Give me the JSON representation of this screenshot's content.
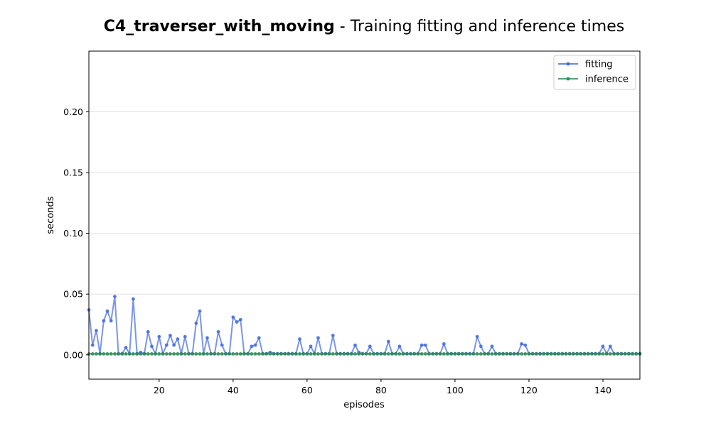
{
  "chart_data": {
    "type": "line",
    "title_bold": "C4_traverser_with_moving",
    "title_rest": " - Training fitting and inference times",
    "xlabel": "episodes",
    "ylabel": "seconds",
    "xlim": [
      1,
      150
    ],
    "ylim": [
      -0.02,
      0.25
    ],
    "xticks": [
      20,
      40,
      60,
      80,
      100,
      120,
      140
    ],
    "yticks": [
      0.0,
      0.05,
      0.1,
      0.15,
      0.2
    ],
    "ytick_labels": [
      "0.00",
      "0.05",
      "0.10",
      "0.15",
      "0.20"
    ],
    "grid": "horizontal",
    "legend_position": "top-right",
    "series": [
      {
        "name": "fitting",
        "color": "#4169e1",
        "x": [
          1,
          2,
          3,
          4,
          5,
          6,
          7,
          8,
          9,
          10,
          11,
          12,
          13,
          14,
          15,
          16,
          17,
          18,
          19,
          20,
          21,
          22,
          23,
          24,
          25,
          26,
          27,
          28,
          29,
          30,
          31,
          32,
          33,
          34,
          35,
          36,
          37,
          38,
          39,
          40,
          41,
          42,
          43,
          44,
          45,
          46,
          47,
          48,
          49,
          50,
          51,
          52,
          53,
          54,
          55,
          56,
          57,
          58,
          59,
          60,
          61,
          62,
          63,
          64,
          65,
          66,
          67,
          68,
          69,
          70,
          71,
          72,
          73,
          74,
          75,
          76,
          77,
          78,
          79,
          80,
          81,
          82,
          83,
          84,
          85,
          86,
          87,
          88,
          89,
          90,
          91,
          92,
          93,
          94,
          95,
          96,
          97,
          98,
          99,
          100,
          101,
          102,
          103,
          104,
          105,
          106,
          107,
          108,
          109,
          110,
          111,
          112,
          113,
          114,
          115,
          116,
          117,
          118,
          119,
          120,
          121,
          122,
          123,
          124,
          125,
          126,
          127,
          128,
          129,
          130,
          131,
          132,
          133,
          134,
          135,
          136,
          137,
          138,
          139,
          140,
          141,
          142,
          143,
          144,
          145,
          146,
          147,
          148,
          149,
          150
        ],
        "y": [
          0.037,
          0.008,
          0.02,
          0.001,
          0.028,
          0.036,
          0.028,
          0.048,
          0.001,
          0.001,
          0.006,
          0.001,
          0.046,
          0.001,
          0.002,
          0.001,
          0.019,
          0.007,
          0.001,
          0.015,
          0.001,
          0.008,
          0.016,
          0.008,
          0.013,
          0.001,
          0.015,
          0.001,
          0.001,
          0.026,
          0.036,
          0.001,
          0.014,
          0.001,
          0.001,
          0.019,
          0.008,
          0.001,
          0.001,
          0.031,
          0.027,
          0.029,
          0.001,
          0.001,
          0.007,
          0.008,
          0.014,
          0.001,
          0.001,
          0.002,
          0.001,
          0.001,
          0.001,
          0.001,
          0.001,
          0.001,
          0.001,
          0.013,
          0.001,
          0.001,
          0.007,
          0.001,
          0.014,
          0.001,
          0.001,
          0.001,
          0.016,
          0.001,
          0.001,
          0.001,
          0.001,
          0.001,
          0.008,
          0.002,
          0.001,
          0.001,
          0.007,
          0.001,
          0.001,
          0.001,
          0.001,
          0.011,
          0.001,
          0.001,
          0.007,
          0.001,
          0.001,
          0.001,
          0.001,
          0.001,
          0.008,
          0.008,
          0.001,
          0.001,
          0.001,
          0.001,
          0.009,
          0.001,
          0.001,
          0.001,
          0.001,
          0.001,
          0.001,
          0.001,
          0.001,
          0.015,
          0.007,
          0.001,
          0.001,
          0.007,
          0.001,
          0.001,
          0.001,
          0.001,
          0.001,
          0.001,
          0.001,
          0.009,
          0.008,
          0.001,
          0.001,
          0.001,
          0.001,
          0.001,
          0.001,
          0.001,
          0.001,
          0.001,
          0.001,
          0.001,
          0.001,
          0.001,
          0.001,
          0.001,
          0.001,
          0.001,
          0.001,
          0.001,
          0.001,
          0.007,
          0.001,
          0.007,
          0.001,
          0.001,
          0.001,
          0.001,
          0.001,
          0.001,
          0.001,
          0.001
        ]
      },
      {
        "name": "inference",
        "color": "#2e8b57",
        "x": [
          1,
          2,
          3,
          4,
          5,
          6,
          7,
          8,
          9,
          10,
          11,
          12,
          13,
          14,
          15,
          16,
          17,
          18,
          19,
          20,
          21,
          22,
          23,
          24,
          25,
          26,
          27,
          28,
          29,
          30,
          31,
          32,
          33,
          34,
          35,
          36,
          37,
          38,
          39,
          40,
          41,
          42,
          43,
          44,
          45,
          46,
          47,
          48,
          49,
          50,
          51,
          52,
          53,
          54,
          55,
          56,
          57,
          58,
          59,
          60,
          61,
          62,
          63,
          64,
          65,
          66,
          67,
          68,
          69,
          70,
          71,
          72,
          73,
          74,
          75,
          76,
          77,
          78,
          79,
          80,
          81,
          82,
          83,
          84,
          85,
          86,
          87,
          88,
          89,
          90,
          91,
          92,
          93,
          94,
          95,
          96,
          97,
          98,
          99,
          100,
          101,
          102,
          103,
          104,
          105,
          106,
          107,
          108,
          109,
          110,
          111,
          112,
          113,
          114,
          115,
          116,
          117,
          118,
          119,
          120,
          121,
          122,
          123,
          124,
          125,
          126,
          127,
          128,
          129,
          130,
          131,
          132,
          133,
          134,
          135,
          136,
          137,
          138,
          139,
          140,
          141,
          142,
          143,
          144,
          145,
          146,
          147,
          148,
          149,
          150
        ],
        "y": [
          0.0008,
          0.0008,
          0.0008,
          0.0008,
          0.0008,
          0.0008,
          0.0008,
          0.0008,
          0.0008,
          0.0008,
          0.0008,
          0.0008,
          0.0008,
          0.0008,
          0.0008,
          0.0008,
          0.0008,
          0.0008,
          0.0008,
          0.0008,
          0.0008,
          0.0008,
          0.0008,
          0.0008,
          0.0008,
          0.0008,
          0.0008,
          0.0008,
          0.0008,
          0.0008,
          0.0008,
          0.0008,
          0.0008,
          0.0008,
          0.0008,
          0.0008,
          0.0008,
          0.0008,
          0.0008,
          0.0008,
          0.0008,
          0.0008,
          0.0008,
          0.0008,
          0.0008,
          0.0008,
          0.0008,
          0.0008,
          0.0008,
          0.0008,
          0.0008,
          0.0008,
          0.0008,
          0.0008,
          0.0008,
          0.0008,
          0.0008,
          0.0008,
          0.0008,
          0.0008,
          0.0008,
          0.0008,
          0.0008,
          0.0008,
          0.0008,
          0.0008,
          0.0008,
          0.0008,
          0.0008,
          0.0008,
          0.0008,
          0.0008,
          0.0008,
          0.0008,
          0.0008,
          0.0008,
          0.0008,
          0.0008,
          0.0008,
          0.0008,
          0.0008,
          0.0008,
          0.0008,
          0.0008,
          0.0008,
          0.0008,
          0.0008,
          0.0008,
          0.0008,
          0.0008,
          0.0008,
          0.0008,
          0.0008,
          0.0008,
          0.0008,
          0.0008,
          0.0008,
          0.0008,
          0.0008,
          0.0008,
          0.0008,
          0.0008,
          0.0008,
          0.0008,
          0.0008,
          0.0008,
          0.0008,
          0.0008,
          0.0008,
          0.0008,
          0.0008,
          0.0008,
          0.0008,
          0.0008,
          0.0008,
          0.0008,
          0.0008,
          0.0008,
          0.0008,
          0.0008,
          0.0008,
          0.0008,
          0.0008,
          0.0008,
          0.0008,
          0.0008,
          0.0008,
          0.0008,
          0.0008,
          0.0008,
          0.0008,
          0.0008,
          0.0008,
          0.0008,
          0.0008,
          0.0008,
          0.0008,
          0.0008,
          0.0008,
          0.0008,
          0.0008,
          0.0008,
          0.0008,
          0.0008,
          0.0008,
          0.0008,
          0.0008,
          0.0008,
          0.0008,
          0.0008
        ]
      }
    ]
  }
}
